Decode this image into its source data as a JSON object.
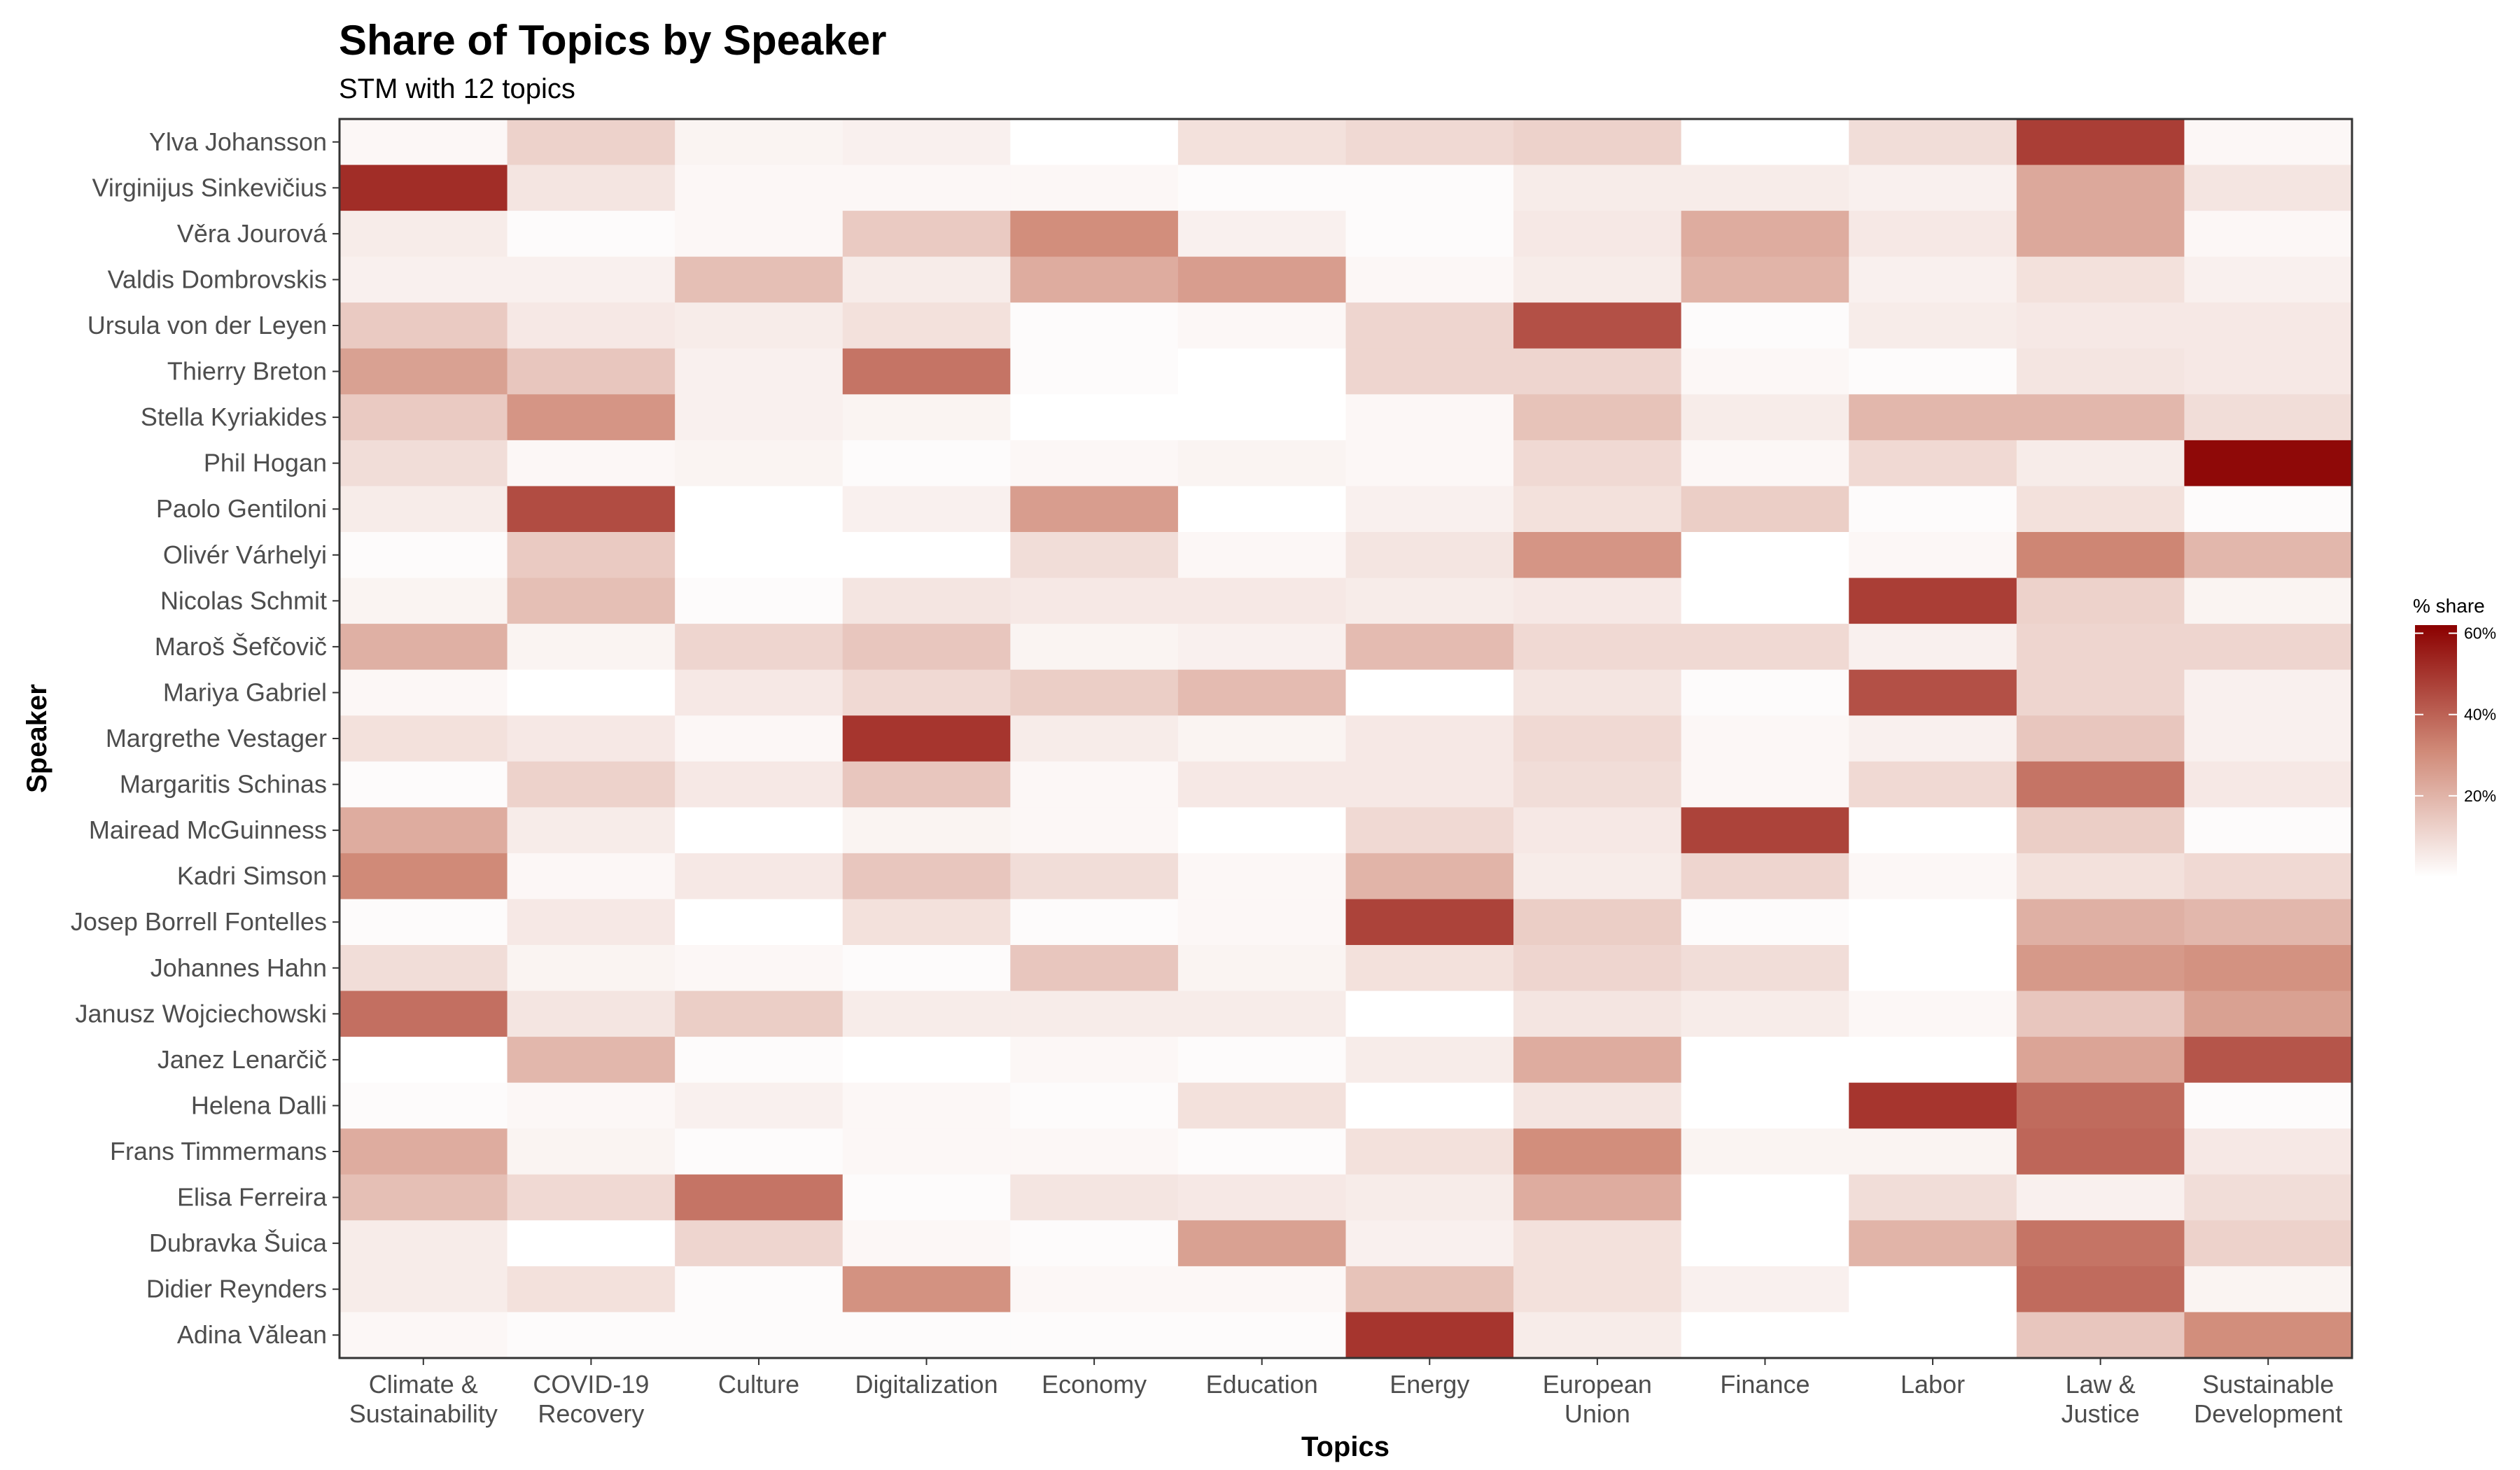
{
  "chart_data": {
    "type": "heatmap",
    "title": "Share of Topics by Speaker",
    "subtitle": "STM with 12 topics",
    "xlabel": "Topics",
    "ylabel": "Speaker",
    "x_categories": [
      [
        "Climate &",
        "Sustainability"
      ],
      [
        "COVID-19",
        "Recovery"
      ],
      [
        "Culture"
      ],
      [
        "Digitalization"
      ],
      [
        "Economy"
      ],
      [
        "Education"
      ],
      [
        "Energy"
      ],
      [
        "European",
        "Union"
      ],
      [
        "Finance"
      ],
      [
        "Labor"
      ],
      [
        "Law &",
        "Justice"
      ],
      [
        "Sustainable",
        "Development"
      ]
    ],
    "y_categories": [
      "Ylva Johansson",
      "Virginijus Sinkevičius",
      "Věra Jourová",
      "Valdis Dombrovskis",
      "Ursula von der Leyen",
      "Thierry Breton",
      "Stella Kyriakides",
      "Phil Hogan",
      "Paolo Gentiloni",
      "Olivér Várhelyi",
      "Nicolas Schmit",
      "Maroš Šefčovič",
      "Mariya Gabriel",
      "Margrethe Vestager",
      "Margaritis Schinas",
      "Mairead McGuinness",
      "Kadri Simson",
      "Josep Borrell Fontelles",
      "Johannes Hahn",
      "Janusz Wojciechowski",
      "Janez Lenarčič",
      "Helena Dalli",
      "Frans Timmermans",
      "Elisa Ferreira",
      "Dubravka Šuica",
      "Didier Reynders",
      "Adina Vălean"
    ],
    "values": [
      [
        2,
        12,
        3,
        4,
        0,
        8,
        10,
        12,
        0,
        9,
        48,
        2
      ],
      [
        52,
        7,
        2,
        2,
        2,
        1,
        1,
        5,
        5,
        4,
        23,
        7
      ],
      [
        5,
        1,
        2,
        14,
        30,
        4,
        1,
        6,
        22,
        6,
        23,
        2
      ],
      [
        4,
        4,
        17,
        5,
        22,
        26,
        2,
        5,
        20,
        4,
        8,
        4
      ],
      [
        14,
        6,
        5,
        8,
        1,
        2,
        11,
        44,
        1,
        5,
        6,
        6
      ],
      [
        25,
        15,
        4,
        36,
        1,
        0,
        11,
        11,
        2,
        1,
        7,
        6
      ],
      [
        14,
        28,
        4,
        3,
        0,
        0,
        2,
        16,
        5,
        19,
        19,
        9
      ],
      [
        9,
        2,
        3,
        1,
        2,
        3,
        2,
        10,
        2,
        10,
        5,
        60
      ],
      [
        5,
        45,
        0,
        4,
        26,
        0,
        4,
        8,
        13,
        1,
        8,
        1
      ],
      [
        1,
        14,
        0,
        0,
        9,
        2,
        7,
        28,
        0,
        2,
        32,
        19
      ],
      [
        3,
        17,
        1,
        7,
        6,
        6,
        5,
        6,
        0,
        48,
        12,
        3
      ],
      [
        21,
        3,
        11,
        15,
        3,
        4,
        18,
        10,
        10,
        4,
        11,
        11
      ],
      [
        2,
        0,
        6,
        10,
        13,
        18,
        0,
        7,
        1,
        44,
        11,
        4
      ],
      [
        8,
        6,
        2,
        50,
        5,
        3,
        6,
        10,
        2,
        4,
        15,
        4
      ],
      [
        1,
        12,
        6,
        15,
        2,
        6,
        6,
        9,
        2,
        10,
        36,
        6
      ],
      [
        22,
        5,
        0,
        3,
        2,
        0,
        10,
        6,
        47,
        0,
        13,
        1
      ],
      [
        31,
        2,
        6,
        15,
        9,
        2,
        20,
        5,
        11,
        2,
        8,
        10
      ],
      [
        1,
        6,
        0,
        8,
        1,
        2,
        47,
        13,
        1,
        0,
        21,
        19
      ],
      [
        9,
        3,
        2,
        1,
        15,
        3,
        8,
        11,
        9,
        0,
        27,
        29
      ],
      [
        37,
        7,
        13,
        5,
        5,
        5,
        0,
        7,
        5,
        2,
        15,
        25
      ],
      [
        0,
        19,
        1,
        0,
        2,
        1,
        5,
        22,
        0,
        0,
        24,
        43
      ],
      [
        1,
        2,
        4,
        2,
        1,
        8,
        0,
        7,
        0,
        50,
        38,
        1
      ],
      [
        22,
        3,
        1,
        2,
        2,
        1,
        8,
        30,
        3,
        3,
        39,
        6
      ],
      [
        17,
        10,
        36,
        1,
        7,
        6,
        5,
        22,
        0,
        9,
        4,
        9
      ],
      [
        5,
        0,
        11,
        2,
        1,
        25,
        4,
        8,
        0,
        20,
        36,
        12
      ],
      [
        5,
        8,
        1,
        29,
        2,
        2,
        16,
        8,
        4,
        0,
        38,
        3
      ],
      [
        2,
        1,
        1,
        1,
        1,
        1,
        50,
        5,
        0,
        0,
        15,
        30
      ]
    ],
    "legend": {
      "title": "% share",
      "ticks": [
        "20%",
        "40%",
        "60%"
      ],
      "tick_values": [
        20,
        40,
        60
      ],
      "range": [
        0,
        62
      ],
      "low_color": "#ffffff",
      "high_color": "#8b0000",
      "placement": "right"
    },
    "grid": true
  }
}
